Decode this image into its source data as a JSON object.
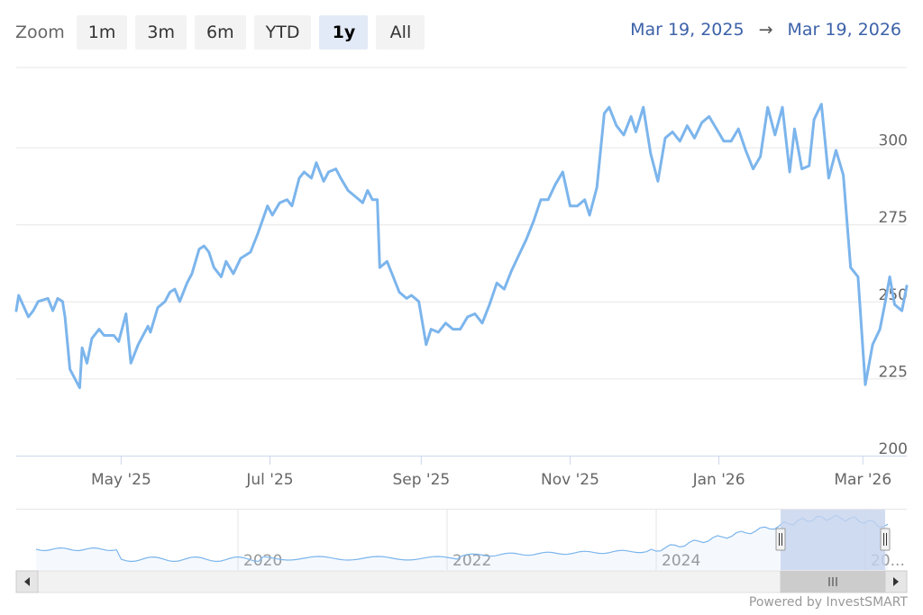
{
  "zoom": {
    "label": "Zoom",
    "buttons": [
      "1m",
      "3m",
      "6m",
      "YTD",
      "1y",
      "All"
    ],
    "active": "1y"
  },
  "range": {
    "from": "Mar 19, 2025",
    "arrow": "→",
    "to": "Mar 19, 2026"
  },
  "credit": "Powered by InvestSMART",
  "colors": {
    "line": "#7cb5ec",
    "grid": "#e6e6e6",
    "navigator_mask": "#c6d3ee"
  },
  "chart_data": {
    "type": "line",
    "x_ticks": [
      "May '25",
      "Jul '25",
      "Sep '25",
      "Nov '25",
      "Jan '26",
      "Mar '26"
    ],
    "y_ticks": [
      200,
      225,
      250,
      275,
      300
    ],
    "ylim": [
      200,
      325
    ],
    "xlim": [
      "2025-03-19",
      "2026-03-19"
    ],
    "series": [
      {
        "values": [
          [
            "2025-03-19",
            247
          ],
          [
            "2025-03-20",
            252
          ],
          [
            "2025-03-24",
            245
          ],
          [
            "2025-03-26",
            247
          ],
          [
            "2025-03-28",
            250
          ],
          [
            "2025-04-01",
            251
          ],
          [
            "2025-04-03",
            247
          ],
          [
            "2025-04-05",
            251
          ],
          [
            "2025-04-07",
            250
          ],
          [
            "2025-04-08",
            245
          ],
          [
            "2025-04-10",
            228
          ],
          [
            "2025-04-14",
            222
          ],
          [
            "2025-04-15",
            235
          ],
          [
            "2025-04-17",
            230
          ],
          [
            "2025-04-19",
            238
          ],
          [
            "2025-04-22",
            241
          ],
          [
            "2025-04-24",
            239
          ],
          [
            "2025-04-28",
            239
          ],
          [
            "2025-04-30",
            237
          ],
          [
            "2025-05-03",
            246
          ],
          [
            "2025-05-05",
            230
          ],
          [
            "2025-05-08",
            236
          ],
          [
            "2025-05-12",
            242
          ],
          [
            "2025-05-13",
            240
          ],
          [
            "2025-05-16",
            248
          ],
          [
            "2025-05-19",
            250
          ],
          [
            "2025-05-21",
            253
          ],
          [
            "2025-05-23",
            254
          ],
          [
            "2025-05-25",
            250
          ],
          [
            "2025-05-28",
            256
          ],
          [
            "2025-05-30",
            259
          ],
          [
            "2025-06-02",
            267
          ],
          [
            "2025-06-04",
            268
          ],
          [
            "2025-06-06",
            266
          ],
          [
            "2025-06-08",
            261
          ],
          [
            "2025-06-11",
            258
          ],
          [
            "2025-06-13",
            263
          ],
          [
            "2025-06-16",
            259
          ],
          [
            "2025-06-19",
            264
          ],
          [
            "2025-06-23",
            266
          ],
          [
            "2025-06-26",
            272
          ],
          [
            "2025-06-30",
            281
          ],
          [
            "2025-07-02",
            278
          ],
          [
            "2025-07-05",
            282
          ],
          [
            "2025-07-08",
            283
          ],
          [
            "2025-07-10",
            281
          ],
          [
            "2025-07-13",
            290
          ],
          [
            "2025-07-15",
            292
          ],
          [
            "2025-07-18",
            290
          ],
          [
            "2025-07-20",
            295
          ],
          [
            "2025-07-23",
            289
          ],
          [
            "2025-07-25",
            292
          ],
          [
            "2025-07-28",
            293
          ],
          [
            "2025-07-30",
            290
          ],
          [
            "2025-08-02",
            286
          ],
          [
            "2025-08-05",
            284
          ],
          [
            "2025-08-08",
            282
          ],
          [
            "2025-08-10",
            286
          ],
          [
            "2025-08-12",
            283
          ],
          [
            "2025-08-14",
            283
          ],
          [
            "2025-08-15",
            261
          ],
          [
            "2025-08-18",
            263
          ],
          [
            "2025-08-20",
            259
          ],
          [
            "2025-08-23",
            253
          ],
          [
            "2025-08-26",
            251
          ],
          [
            "2025-08-28",
            252
          ],
          [
            "2025-08-31",
            250
          ],
          [
            "2025-09-03",
            236
          ],
          [
            "2025-09-05",
            241
          ],
          [
            "2025-09-08",
            240
          ],
          [
            "2025-09-11",
            243
          ],
          [
            "2025-09-14",
            241
          ],
          [
            "2025-09-17",
            241
          ],
          [
            "2025-09-20",
            245
          ],
          [
            "2025-09-23",
            246
          ],
          [
            "2025-09-26",
            243
          ],
          [
            "2025-09-29",
            249
          ],
          [
            "2025-10-02",
            256
          ],
          [
            "2025-10-05",
            254
          ],
          [
            "2025-10-08",
            260
          ],
          [
            "2025-10-11",
            265
          ],
          [
            "2025-10-14",
            270
          ],
          [
            "2025-10-17",
            276
          ],
          [
            "2025-10-20",
            283
          ],
          [
            "2025-10-23",
            283
          ],
          [
            "2025-10-26",
            288
          ],
          [
            "2025-10-29",
            292
          ],
          [
            "2025-11-01",
            281
          ],
          [
            "2025-11-04",
            281
          ],
          [
            "2025-11-07",
            283
          ],
          [
            "2025-11-09",
            278
          ],
          [
            "2025-11-12",
            287
          ],
          [
            "2025-11-15",
            311
          ],
          [
            "2025-11-17",
            313
          ],
          [
            "2025-11-20",
            307
          ],
          [
            "2025-11-23",
            304
          ],
          [
            "2025-11-26",
            310
          ],
          [
            "2025-11-28",
            305
          ],
          [
            "2025-12-01",
            313
          ],
          [
            "2025-12-04",
            298
          ],
          [
            "2025-12-07",
            289
          ],
          [
            "2025-12-10",
            303
          ],
          [
            "2025-12-13",
            305
          ],
          [
            "2025-12-16",
            302
          ],
          [
            "2025-12-19",
            307
          ],
          [
            "2025-12-22",
            303
          ],
          [
            "2025-12-25",
            308
          ],
          [
            "2025-12-28",
            310
          ],
          [
            "2025-12-31",
            306
          ],
          [
            "2026-01-03",
            302
          ],
          [
            "2026-01-06",
            302
          ],
          [
            "2026-01-09",
            306
          ],
          [
            "2026-01-12",
            299
          ],
          [
            "2026-01-15",
            293
          ],
          [
            "2026-01-18",
            297
          ],
          [
            "2026-01-21",
            313
          ],
          [
            "2026-01-24",
            304
          ],
          [
            "2026-01-27",
            313
          ],
          [
            "2026-01-30",
            292
          ],
          [
            "2026-02-01",
            306
          ],
          [
            "2026-02-04",
            293
          ],
          [
            "2026-02-07",
            294
          ],
          [
            "2026-02-09",
            309
          ],
          [
            "2026-02-12",
            314
          ],
          [
            "2026-02-15",
            290
          ],
          [
            "2026-02-18",
            299
          ],
          [
            "2026-02-21",
            291
          ],
          [
            "2026-02-24",
            261
          ],
          [
            "2026-02-27",
            258
          ],
          [
            "2026-03-02",
            223
          ],
          [
            "2026-03-05",
            236
          ],
          [
            "2026-03-08",
            241
          ],
          [
            "2026-03-10",
            249
          ],
          [
            "2026-03-12",
            258
          ],
          [
            "2026-03-14",
            249
          ],
          [
            "2026-03-17",
            247
          ],
          [
            "2026-03-19",
            255
          ]
        ]
      }
    ],
    "navigator": {
      "x_ticks": [
        "2020",
        "2022",
        "2024",
        "20..."
      ]
    }
  }
}
